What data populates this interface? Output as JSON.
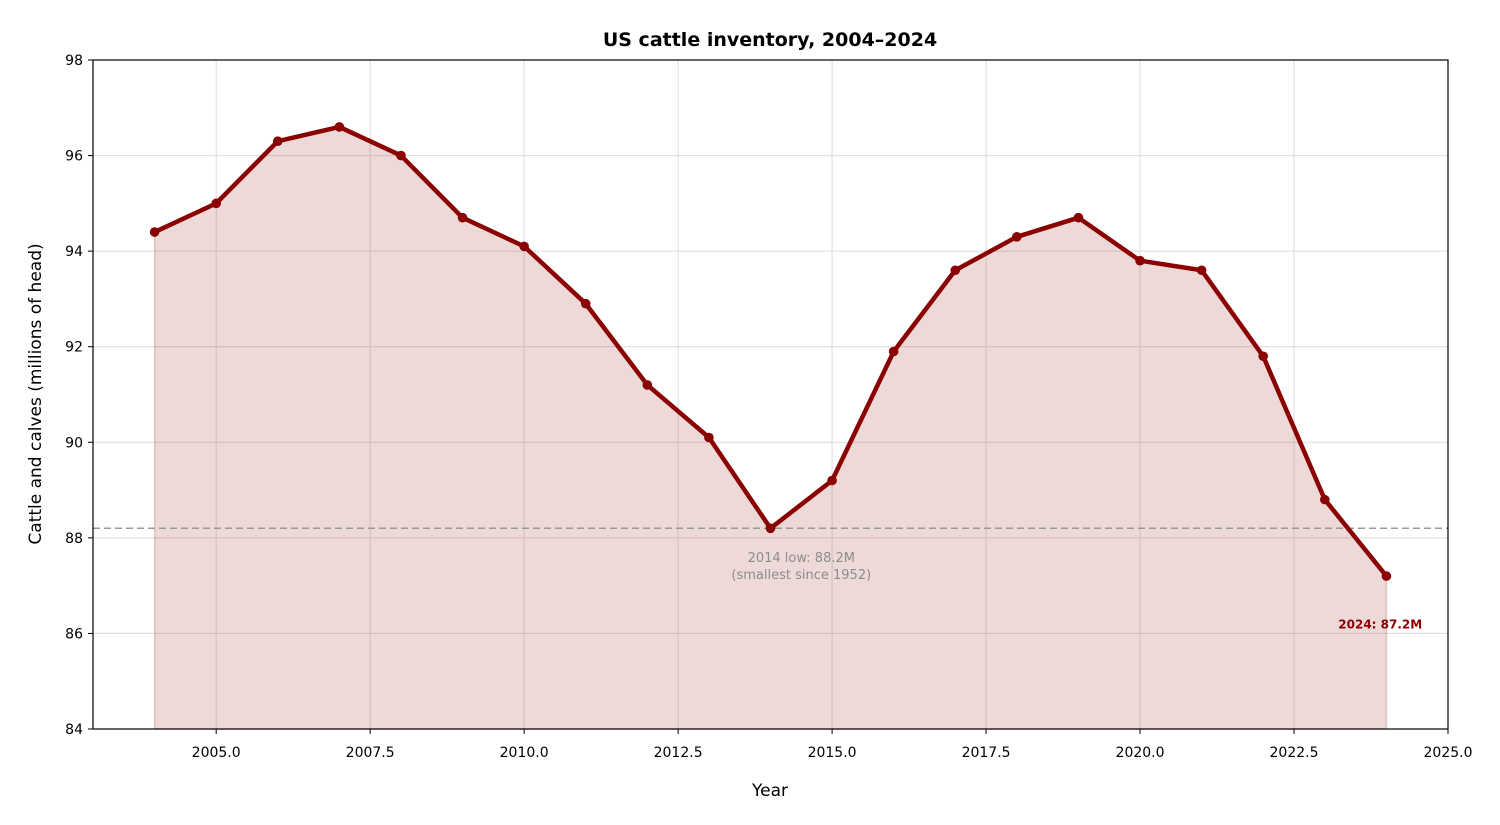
{
  "chart_data": {
    "type": "line",
    "title": "US cattle inventory, 2004–2024",
    "xlabel": "Year",
    "ylabel": "Cattle and calves (millions of head)",
    "xlim": [
      2003,
      2025
    ],
    "ylim": [
      84,
      98
    ],
    "x_ticks": [
      2005,
      2007.5,
      2010,
      2012.5,
      2015,
      2017.5,
      2020,
      2022.5,
      2025
    ],
    "x_tick_labels": [
      "2005.0",
      "2007.5",
      "2010.0",
      "2012.5",
      "2015.0",
      "2017.5",
      "2020.0",
      "2022.5",
      "2025.0"
    ],
    "y_ticks": [
      84,
      86,
      88,
      90,
      92,
      94,
      96,
      98
    ],
    "y_tick_labels": [
      "84",
      "86",
      "88",
      "90",
      "92",
      "94",
      "96",
      "98"
    ],
    "grid": true,
    "fill_under": true,
    "series": [
      {
        "x": [
          2004,
          2005,
          2006,
          2007,
          2008,
          2009,
          2010,
          2011,
          2012,
          2013,
          2014,
          2015,
          2016,
          2017,
          2018,
          2019,
          2020,
          2021,
          2022,
          2023,
          2024
        ],
        "values": [
          94.4,
          95.0,
          96.3,
          96.6,
          96.0,
          94.7,
          94.1,
          92.9,
          91.2,
          90.1,
          88.2,
          89.2,
          91.9,
          93.6,
          94.3,
          94.7,
          93.8,
          93.6,
          91.8,
          88.8,
          87.2
        ],
        "color": "#8b0000"
      }
    ],
    "reference_line": {
      "y": 88.2,
      "color": "#999999"
    },
    "annotations": [
      {
        "lines": [
          "2014 low: 88.2M",
          "(smallest since 1952)"
        ],
        "x": 2014.5,
        "y": 87.5,
        "color": "#8c8c8c"
      },
      {
        "lines": [
          "2024: 87.2M"
        ],
        "x": 2023.9,
        "y": 86.1,
        "color": "#8b0000"
      }
    ]
  }
}
